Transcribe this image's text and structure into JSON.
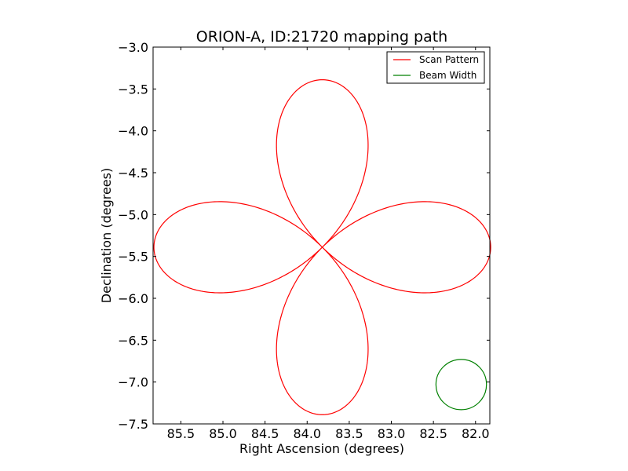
{
  "chart_data": {
    "type": "line",
    "title": "ORION-A, ID:21720 mapping path",
    "xlabel": "Right Ascension (degrees)",
    "ylabel": "Declination (degrees)",
    "xlim": [
      85.83,
      81.83
    ],
    "ylim": [
      -7.5,
      -3.0
    ],
    "x_inverted": true,
    "xticks": [
      85.5,
      85.0,
      84.5,
      84.0,
      83.5,
      83.0,
      82.5,
      82.0
    ],
    "xtick_labels": [
      "85.5",
      "85.0",
      "84.5",
      "84.0",
      "83.5",
      "83.0",
      "82.5",
      "82.0"
    ],
    "yticks": [
      -3.0,
      -3.5,
      -4.0,
      -4.5,
      -5.0,
      -5.5,
      -6.0,
      -6.5,
      -7.0,
      -7.5
    ],
    "ytick_labels": [
      "−3.0",
      "−3.5",
      "−4.0",
      "−4.5",
      "−5.0",
      "−5.5",
      "−6.0",
      "−6.5",
      "−7.0",
      "−7.5"
    ],
    "grid": false,
    "legend": "top-right",
    "series": [
      {
        "name": "Scan Pattern",
        "color": "#ff0000",
        "shape": "four-petal rose",
        "center": [
          83.82,
          -5.39
        ],
        "petal_length": 2.0
      },
      {
        "name": "Beam Width",
        "color": "#008000",
        "shape": "circle",
        "center": [
          82.17,
          -7.03
        ],
        "radius": 0.3
      }
    ]
  }
}
